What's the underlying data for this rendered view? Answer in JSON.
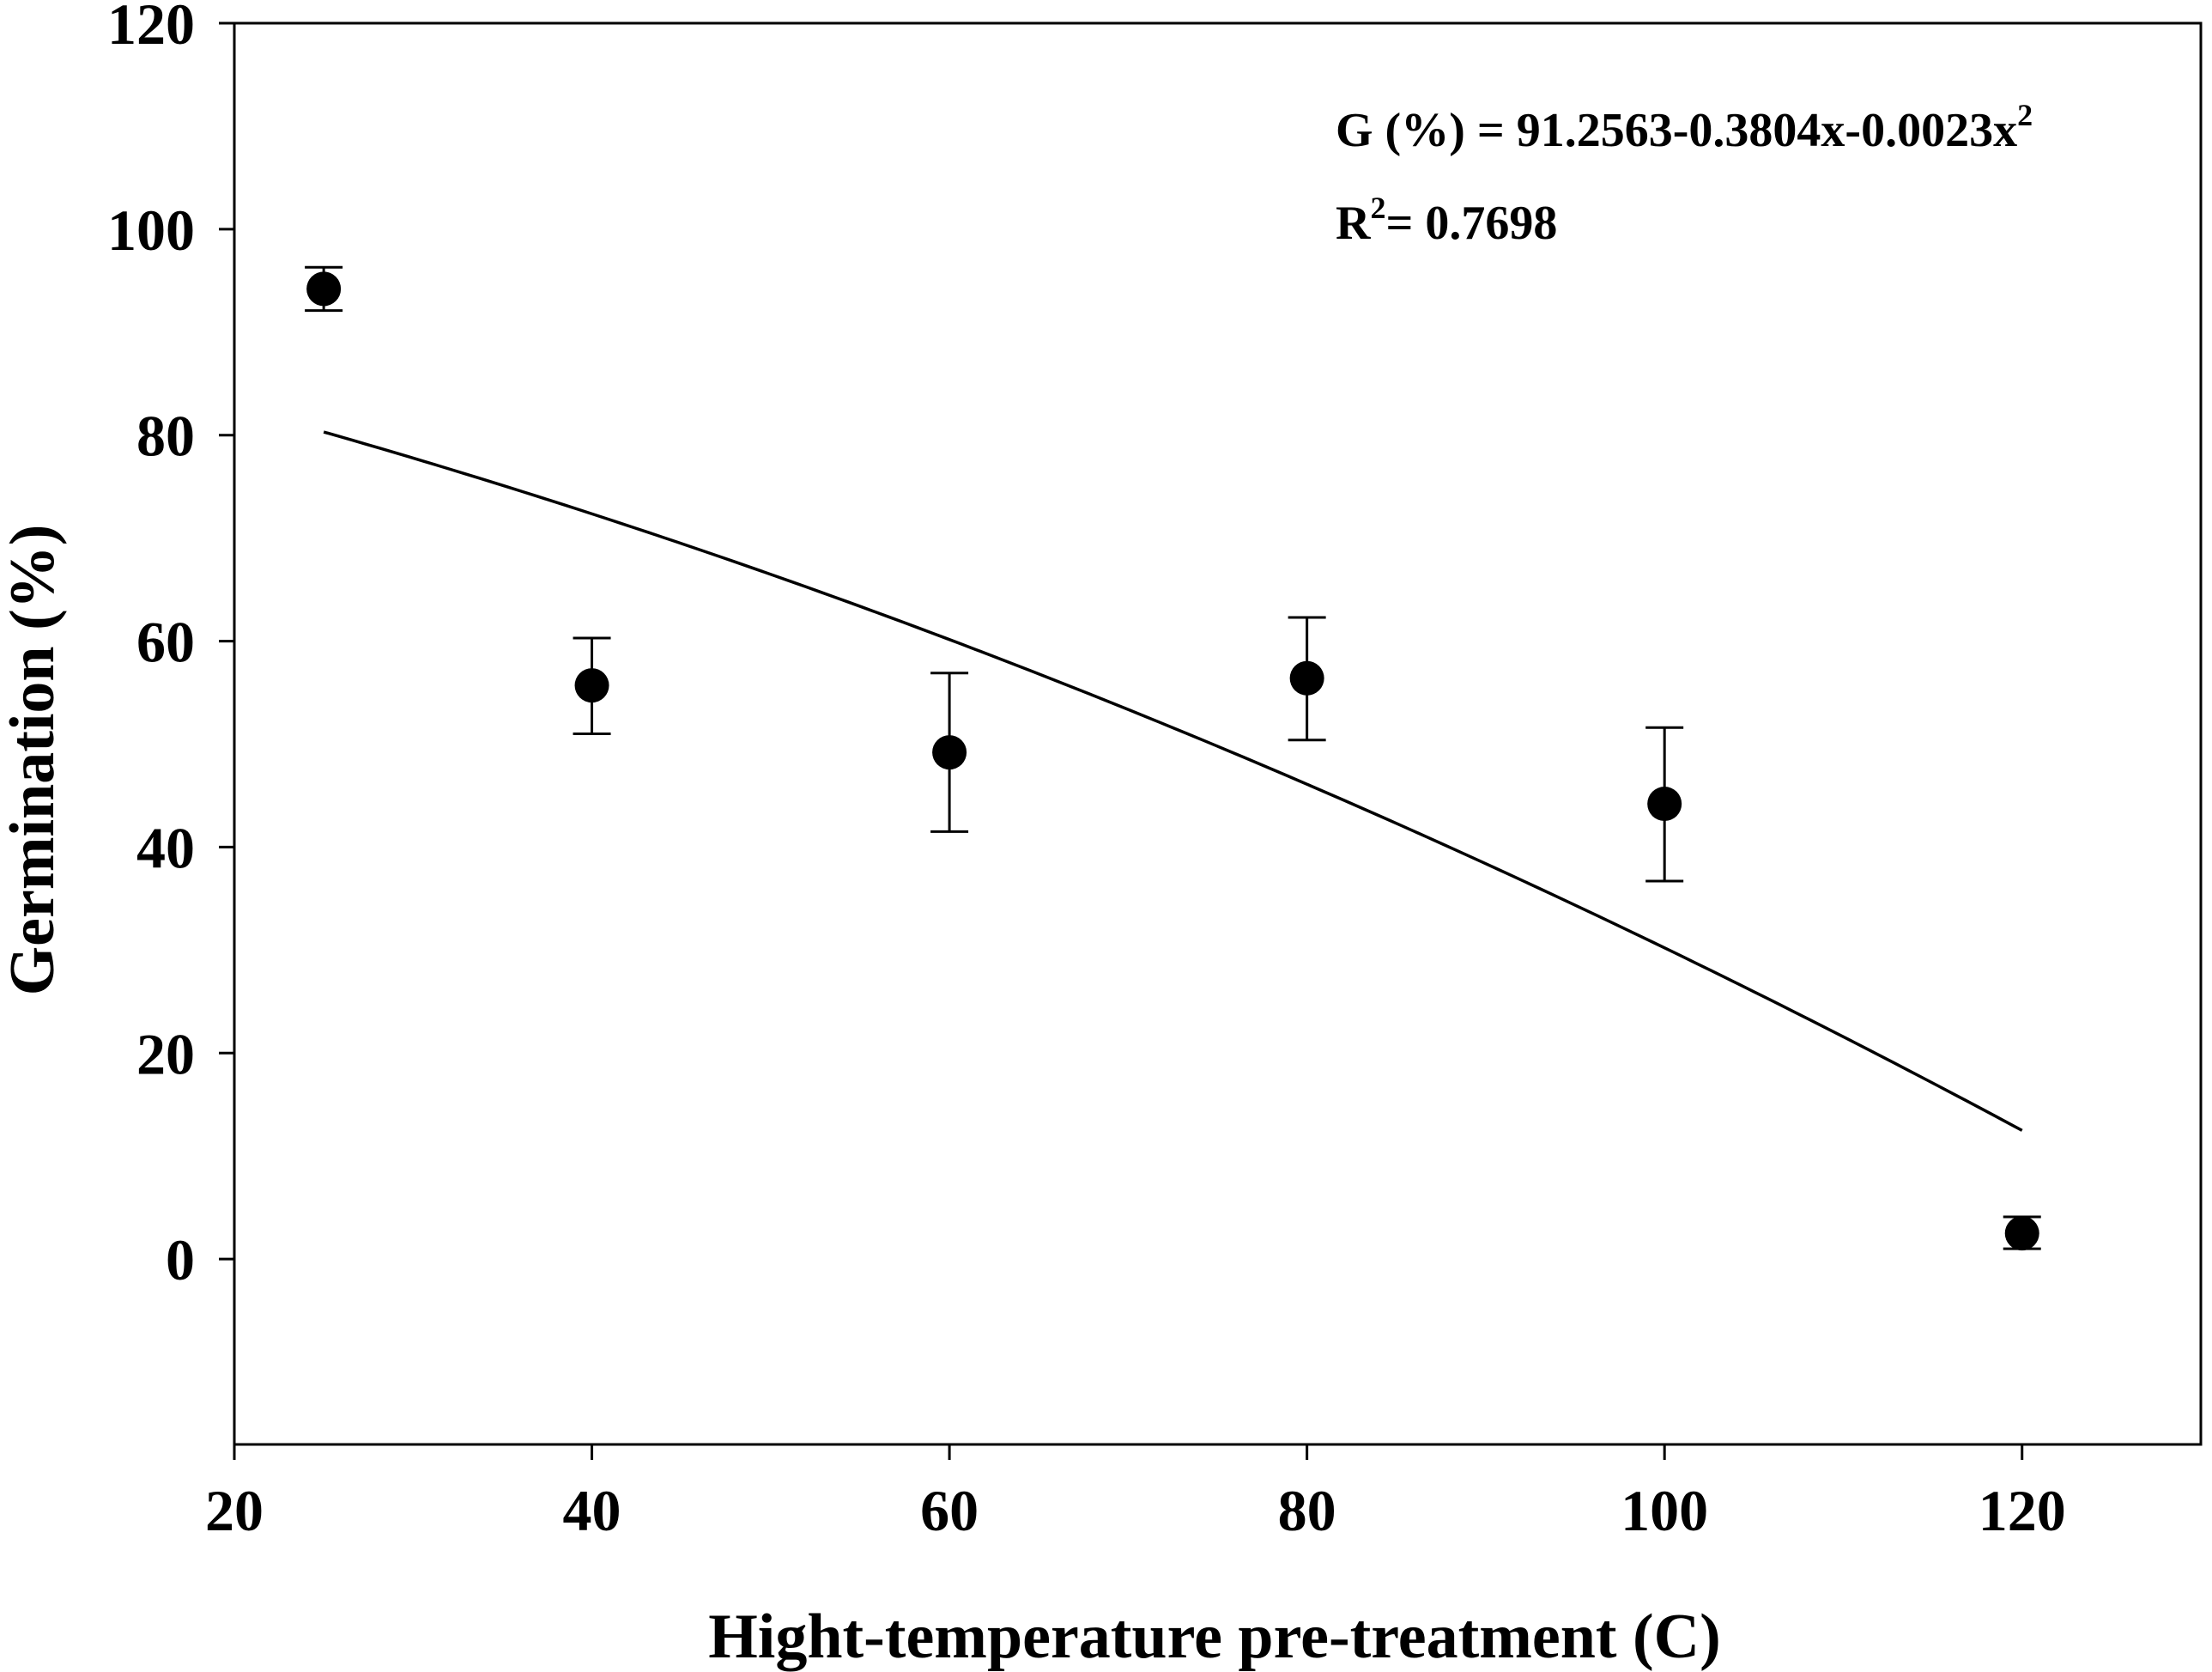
{
  "chart_data": {
    "type": "scatter",
    "title": "",
    "xlabel": "Hight-temperature pre-treatment (C)",
    "ylabel": "Germination (%)",
    "xlim": [
      20,
      130
    ],
    "ylim": [
      -18,
      120
    ],
    "x_ticks": [
      20,
      40,
      60,
      80,
      100,
      120
    ],
    "x_tick_labels": [
      "20",
      "40",
      "60",
      "80",
      "100",
      "120"
    ],
    "y_ticks": [
      0,
      20,
      40,
      60,
      80,
      100,
      120
    ],
    "y_tick_labels": [
      "0",
      "20",
      "40",
      "60",
      "80",
      "100",
      "120"
    ],
    "grid": false,
    "series": [
      {
        "name": "Germination",
        "marker": "filled-circle",
        "color": "#000000",
        "x": [
          25,
          40,
          60,
          80,
          100,
          120
        ],
        "y": [
          94.2,
          55.7,
          49.2,
          56.4,
          44.2,
          2.5
        ],
        "error_upper": [
          96.3,
          60.3,
          56.9,
          62.3,
          51.6,
          4.1
        ],
        "error_lower": [
          92.1,
          51.0,
          41.5,
          50.4,
          36.7,
          1.0
        ]
      }
    ],
    "fit": {
      "name": "Quadratic fit",
      "type": "polynomial",
      "coefficients": [
        91.2563,
        -0.3804,
        -0.0023
      ],
      "x_range": [
        25,
        120
      ],
      "color": "#000000"
    },
    "annotations": {
      "equation_main": "G (%) = 91.2563-0.3804x-0.0023x",
      "equation_sup": "2",
      "r2_prefix": "R",
      "r2_sup": "2",
      "r2_value": "= 0.7698"
    }
  }
}
